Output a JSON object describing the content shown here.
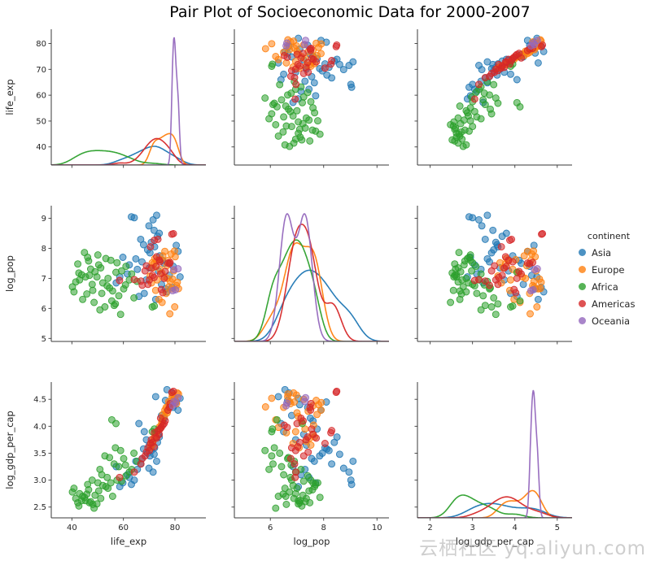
{
  "title": "Pair Plot of Socioeconomic Data for 2000-2007",
  "watermark": "云栖社区 yq.aliyun.com",
  "chart_data": {
    "type": "scatter",
    "chart_kind": "pairplot",
    "title": "Pair Plot of Socioeconomic Data for 2000-2007",
    "diagonal": "kde",
    "grid": false,
    "variables": [
      "life_exp",
      "log_pop",
      "log_gdp_per_cap"
    ],
    "axes": {
      "life_exp": {
        "x_range": [
          32,
          92
        ],
        "y_range": [
          33,
          85.5
        ],
        "x_ticks": [
          40,
          60,
          80
        ],
        "y_ticks": [
          40,
          50,
          60,
          70,
          80
        ]
      },
      "log_pop": {
        "x_range": [
          4.65,
          10.45
        ],
        "y_range": [
          4.9,
          9.42
        ],
        "x_ticks": [
          6,
          8,
          10
        ],
        "y_ticks": [
          5,
          6,
          7,
          8,
          9
        ]
      },
      "log_gdp_per_cap": {
        "x_range": [
          1.7,
          5.35
        ],
        "y_range": [
          2.3,
          4.82
        ],
        "x_ticks": [
          2,
          3,
          4,
          5
        ],
        "y_ticks": [
          2.5,
          3.0,
          3.5,
          4.0,
          4.5
        ],
        "y_tick_labels": [
          "2.5",
          "3.0",
          "3.5",
          "4.0",
          "4.5"
        ]
      }
    },
    "legend": {
      "title": "continent",
      "position": "right",
      "entries": [
        {
          "label": "Asia",
          "color": "#1f77b4"
        },
        {
          "label": "Europe",
          "color": "#ff7f0e"
        },
        {
          "label": "Africa",
          "color": "#2ca02c"
        },
        {
          "label": "Americas",
          "color": "#d62728"
        },
        {
          "label": "Oceania",
          "color": "#9467bd"
        }
      ]
    },
    "point_columns": [
      "life_exp",
      "log_pop",
      "log_gdp_per_cap"
    ],
    "series": [
      {
        "name": "Asia",
        "color": "#1f77b4",
        "points": [
          [
            70.3,
            7.85,
            3.45
          ],
          [
            72.1,
            8.05,
            3.6
          ],
          [
            65.4,
            7.3,
            3.2
          ],
          [
            68.9,
            6.95,
            3.75
          ],
          [
            75.2,
            7.6,
            4.1
          ],
          [
            77.8,
            7.1,
            4.4
          ],
          [
            80.5,
            8.1,
            4.45
          ],
          [
            82.0,
            7.05,
            4.52
          ],
          [
            62.3,
            7.45,
            3.05
          ],
          [
            59.8,
            7.7,
            2.95
          ],
          [
            66.7,
            8.3,
            3.3
          ],
          [
            71.5,
            8.95,
            3.15
          ],
          [
            72.9,
            9.1,
            3.35
          ],
          [
            64.2,
            9.02,
            3.0
          ],
          [
            63.1,
            9.05,
            2.92
          ],
          [
            69.4,
            7.95,
            3.5
          ],
          [
            73.6,
            7.25,
            3.85
          ],
          [
            74.8,
            6.8,
            4.2
          ],
          [
            76.3,
            6.65,
            4.48
          ],
          [
            78.9,
            6.7,
            4.62
          ],
          [
            67.2,
            7.55,
            3.4
          ],
          [
            61.5,
            7.15,
            3.1
          ],
          [
            70.8,
            8.2,
            3.55
          ],
          [
            73.2,
            8.4,
            3.7
          ],
          [
            79.3,
            7.4,
            4.35
          ],
          [
            81.2,
            7.9,
            4.3
          ],
          [
            68.1,
            6.5,
            3.9
          ],
          [
            66.0,
            6.4,
            4.05
          ],
          [
            74.1,
            7.75,
            3.95
          ],
          [
            71.9,
            8.6,
            3.48
          ],
          [
            58.6,
            7.05,
            2.88
          ],
          [
            57.2,
            6.85,
            3.25
          ],
          [
            75.8,
            7.5,
            4.15
          ],
          [
            69.9,
            8.75,
            3.22
          ],
          [
            72.5,
            6.3,
            4.55
          ],
          [
            76.9,
            6.55,
            4.68
          ],
          [
            64.8,
            7.65,
            3.35
          ],
          [
            67.8,
            8.12,
            3.58
          ],
          [
            70.1,
            7.35,
            3.65
          ],
          [
            73.9,
            8.5,
            3.8
          ]
        ]
      },
      {
        "name": "Europe",
        "color": "#ff7f0e",
        "points": [
          [
            78.2,
            6.9,
            4.45
          ],
          [
            79.5,
            7.25,
            4.5
          ],
          [
            80.6,
            6.76,
            4.42
          ],
          [
            77.4,
            7.6,
            4.38
          ],
          [
            76.1,
            7.9,
            4.3
          ],
          [
            75.3,
            7.75,
            4.22
          ],
          [
            74.2,
            7.3,
            3.95
          ],
          [
            72.8,
            7.58,
            3.85
          ],
          [
            71.5,
            7.35,
            3.72
          ],
          [
            73.1,
            6.95,
            3.9
          ],
          [
            78.9,
            6.65,
            4.55
          ],
          [
            80.1,
            7.72,
            4.48
          ],
          [
            79.8,
            7.91,
            4.44
          ],
          [
            77.0,
            7.0,
            4.25
          ],
          [
            76.6,
            6.5,
            4.35
          ],
          [
            75.9,
            7.05,
            4.18
          ],
          [
            74.6,
            7.62,
            4.02
          ],
          [
            72.2,
            7.66,
            3.8
          ],
          [
            70.9,
            6.85,
            3.68
          ],
          [
            71.8,
            7.48,
            3.78
          ],
          [
            79.1,
            6.98,
            4.58
          ],
          [
            80.9,
            6.87,
            4.62
          ],
          [
            78.5,
            7.81,
            4.4
          ],
          [
            73.8,
            6.3,
            3.98
          ],
          [
            75.0,
            6.2,
            4.12
          ],
          [
            76.8,
            7.42,
            4.28
          ],
          [
            77.6,
            6.72,
            4.46
          ],
          [
            74.9,
            7.18,
            4.08
          ],
          [
            72.5,
            6.6,
            3.88
          ],
          [
            81.4,
            6.66,
            4.6
          ],
          [
            79.9,
            6.05,
            4.52
          ],
          [
            78.0,
            5.82,
            4.36
          ],
          [
            71.2,
            7.52,
            3.65
          ],
          [
            70.4,
            7.08,
            3.6
          ]
        ]
      },
      {
        "name": "Africa",
        "color": "#2ca02c",
        "points": [
          [
            43.0,
            6.95,
            2.75
          ],
          [
            45.3,
            7.05,
            2.62
          ],
          [
            48.1,
            6.6,
            2.55
          ],
          [
            52.0,
            6.85,
            2.9
          ],
          [
            50.4,
            7.45,
            2.8
          ],
          [
            46.8,
            7.1,
            2.58
          ],
          [
            44.2,
            6.3,
            2.7
          ],
          [
            53.7,
            6.75,
            3.05
          ],
          [
            55.1,
            7.6,
            2.95
          ],
          [
            41.5,
            6.88,
            2.66
          ],
          [
            49.0,
            7.22,
            2.72
          ],
          [
            51.6,
            6.5,
            3.1
          ],
          [
            47.3,
            7.31,
            2.6
          ],
          [
            56.4,
            6.1,
            3.3
          ],
          [
            58.2,
            6.42,
            3.25
          ],
          [
            54.0,
            7.0,
            2.85
          ],
          [
            42.7,
            7.18,
            2.52
          ],
          [
            60.1,
            6.65,
            3.4
          ],
          [
            62.3,
            6.95,
            3.15
          ],
          [
            57.5,
            7.52,
            3.0
          ],
          [
            40.2,
            6.72,
            2.78
          ],
          [
            44.9,
            7.86,
            2.68
          ],
          [
            46.1,
            7.7,
            2.92
          ],
          [
            50.9,
            5.95,
            3.2
          ],
          [
            48.6,
            6.2,
            2.48
          ],
          [
            52.8,
            6.05,
            3.45
          ],
          [
            59.3,
            7.25,
            2.98
          ],
          [
            61.0,
            7.4,
            3.08
          ],
          [
            55.8,
            6.58,
            2.7
          ],
          [
            43.8,
            7.12,
            2.62
          ],
          [
            47.9,
            6.8,
            3.0
          ],
          [
            53.2,
            7.66,
            2.88
          ],
          [
            64.1,
            6.35,
            3.5
          ],
          [
            65.3,
            6.9,
            3.35
          ],
          [
            49.7,
            7.05,
            2.56
          ],
          [
            45.8,
            6.48,
            2.74
          ],
          [
            51.2,
            7.35,
            2.66
          ],
          [
            58.9,
            5.8,
            3.55
          ],
          [
            56.9,
            6.15,
            3.6
          ],
          [
            40.8,
            6.55,
            2.85
          ],
          [
            63.2,
            7.15,
            3.2
          ],
          [
            54.6,
            6.68,
            3.42
          ],
          [
            42.3,
            7.48,
            2.58
          ],
          [
            72.0,
            6.08,
            3.95
          ],
          [
            71.2,
            6.05,
            3.9
          ],
          [
            50.1,
            7.78,
            2.95
          ],
          [
            57.1,
            7.2,
            4.05
          ],
          [
            55.5,
            6.25,
            4.12
          ],
          [
            46.5,
            7.58,
            2.82
          ],
          [
            60.8,
            6.78,
            3.28
          ]
        ]
      },
      {
        "name": "Americas",
        "color": "#d62728",
        "points": [
          [
            71.3,
            7.1,
            3.7
          ],
          [
            72.6,
            7.4,
            3.8
          ],
          [
            70.1,
            6.95,
            3.55
          ],
          [
            68.4,
            7.25,
            3.45
          ],
          [
            74.2,
            7.55,
            3.95
          ],
          [
            75.8,
            7.0,
            4.05
          ],
          [
            77.3,
            7.51,
            4.3
          ],
          [
            78.8,
            8.47,
            4.63
          ],
          [
            79.4,
            8.49,
            4.65
          ],
          [
            77.9,
            7.49,
            4.35
          ],
          [
            72.0,
            8.27,
            3.88
          ],
          [
            73.4,
            8.3,
            3.92
          ],
          [
            69.5,
            6.8,
            3.6
          ],
          [
            66.8,
            6.91,
            3.3
          ],
          [
            64.2,
            6.96,
            3.15
          ],
          [
            58.5,
            6.93,
            3.05
          ],
          [
            70.8,
            7.34,
            3.75
          ],
          [
            73.9,
            7.61,
            3.85
          ],
          [
            76.2,
            7.23,
            4.1
          ],
          [
            74.7,
            6.63,
            3.98
          ],
          [
            71.9,
            7.03,
            3.62
          ],
          [
            68.9,
            7.42,
            3.52
          ],
          [
            75.3,
            6.52,
            4.02
          ],
          [
            72.9,
            7.72,
            3.78
          ],
          [
            78.1,
            7.53,
            4.42
          ],
          [
            67.3,
            6.77,
            3.4
          ],
          [
            70.5,
            8.05,
            3.68
          ],
          [
            74.4,
            7.15,
            4.15
          ]
        ]
      },
      {
        "name": "Oceania",
        "color": "#9467bd",
        "points": [
          [
            79.6,
            7.29,
            4.46
          ],
          [
            81.2,
            7.32,
            4.53
          ],
          [
            79.1,
            6.59,
            4.38
          ],
          [
            80.2,
            6.62,
            4.43
          ]
        ]
      }
    ]
  }
}
